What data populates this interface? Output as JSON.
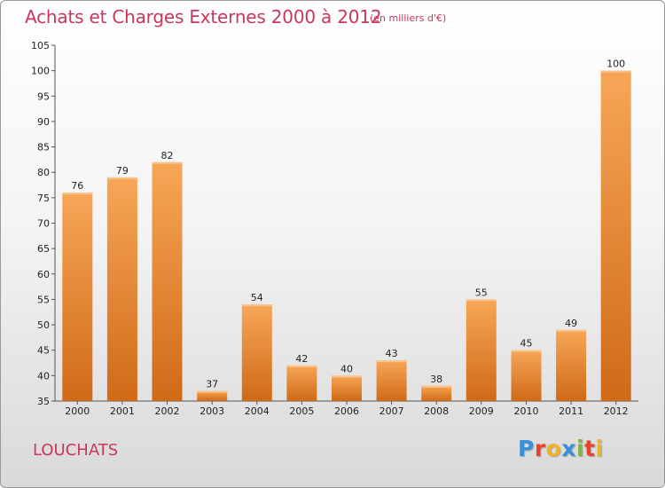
{
  "header": {
    "title": "Achats et Charges Externes 2000 à 2012",
    "subtitle": "(en milliers d'€)"
  },
  "footer": {
    "town": "LOUCHATS",
    "logo_letters": [
      "P",
      "r",
      "o",
      "x",
      "i",
      "t",
      "i"
    ],
    "logo_colors": [
      "#3a8fd6",
      "#e8412c",
      "#f0b323",
      "#3a8fd6",
      "#7ab648",
      "#e8412c",
      "#f0b323"
    ]
  },
  "colors": {
    "bar_top": "#f7a658",
    "bar_bottom": "#cf6a17",
    "axis": "#555555",
    "grid": "#d0d0d0"
  },
  "chart_data": {
    "type": "bar",
    "title": "Achats et Charges Externes 2000 à 2012",
    "subtitle": "(en milliers d'€)",
    "xlabel": "",
    "ylabel": "",
    "categories": [
      "2000",
      "2001",
      "2002",
      "2003",
      "2004",
      "2005",
      "2006",
      "2007",
      "2008",
      "2009",
      "2010",
      "2011",
      "2012"
    ],
    "values": [
      76,
      79,
      82,
      37,
      54,
      42,
      40,
      43,
      38,
      55,
      45,
      49,
      100
    ],
    "ylim": [
      35,
      105
    ],
    "yticks": [
      35,
      40,
      45,
      50,
      55,
      60,
      65,
      70,
      75,
      80,
      85,
      90,
      95,
      100,
      105
    ],
    "grid": false,
    "legend": "none"
  }
}
